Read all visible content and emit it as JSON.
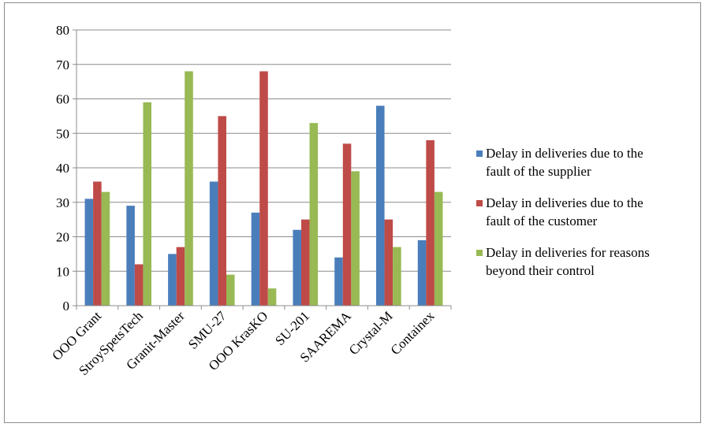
{
  "chart_data": {
    "type": "bar",
    "categories": [
      "OOO Grant",
      "StroySpetsTech",
      "Granit-Master",
      "SMU-27",
      "OOO KrasKO",
      "SU-201",
      "SAAREMA",
      "Crystal-M",
      "Containex"
    ],
    "series": [
      {
        "name": "Delay in deliveries due to the fault of the supplier",
        "name_lines": [
          "Delay in deliveries due to the",
          "fault of the supplier"
        ],
        "color": "#4a7ebb",
        "values": [
          31,
          29,
          15,
          36,
          27,
          22,
          14,
          58,
          19
        ]
      },
      {
        "name": "Delay in deliveries due to the fault of the customer",
        "name_lines": [
          "Delay in deliveries due to the",
          "fault of the customer"
        ],
        "color": "#be4b48",
        "values": [
          36,
          12,
          17,
          55,
          68,
          25,
          47,
          25,
          48
        ]
      },
      {
        "name": "Delay in deliveries for reasons beyond their control",
        "name_lines": [
          "Delay in deliveries for reasons",
          "beyond their control"
        ],
        "color": "#98b954",
        "values": [
          33,
          59,
          68,
          9,
          5,
          53,
          39,
          17,
          33
        ]
      }
    ],
    "ylim": [
      0,
      80
    ],
    "yticks": [
      0,
      10,
      20,
      30,
      40,
      50,
      60,
      70,
      80
    ],
    "title": "",
    "xlabel": "",
    "ylabel": "",
    "grid": true,
    "legend_position": "right"
  }
}
